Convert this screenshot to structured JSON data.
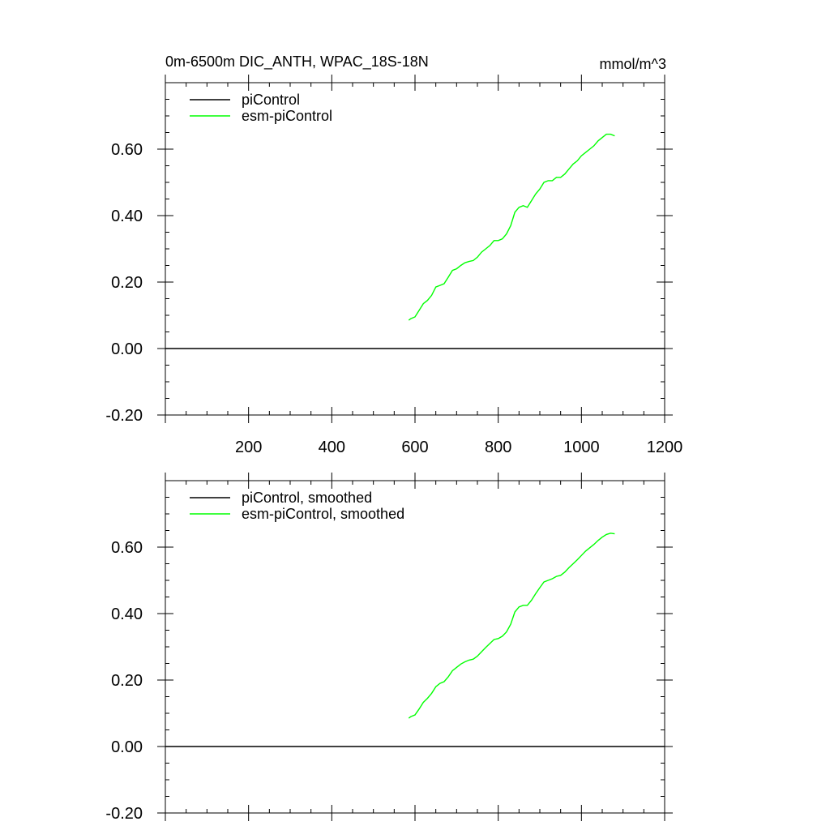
{
  "title": "0m-6500m DIC_ANTH, WPAC_18S-18N",
  "units": "mmol/m^3",
  "chart_data": [
    {
      "type": "line",
      "panel": "top",
      "title": "0m-6500m DIC_ANTH, WPAC_18S-18N",
      "units_label": "mmol/m^3",
      "xlim": [
        0,
        1200
      ],
      "ylim": [
        -0.2,
        0.8
      ],
      "x_ticks": [
        200,
        400,
        600,
        800,
        1000,
        1200
      ],
      "x_tick_labels": [
        "200",
        "400",
        "600",
        "800",
        "1000",
        "1200"
      ],
      "y_ticks": [
        -0.2,
        0,
        0.2,
        0.4,
        0.6
      ],
      "y_tick_labels": [
        "-0.20",
        "0.00",
        "0.20",
        "0.40",
        "0.60"
      ],
      "legend_position": "top-left",
      "series": [
        {
          "name": "piControl",
          "color": "#000000",
          "x": [
            0,
            1200
          ],
          "values": [
            0,
            0
          ]
        },
        {
          "name": "esm-piControl",
          "color": "#00ff00",
          "x": [
            585,
            590,
            600,
            610,
            620,
            630,
            640,
            650,
            660,
            670,
            680,
            690,
            700,
            710,
            720,
            730,
            740,
            750,
            760,
            770,
            780,
            790,
            800,
            810,
            820,
            830,
            840,
            850,
            860,
            870,
            880,
            890,
            900,
            910,
            920,
            930,
            940,
            950,
            960,
            970,
            980,
            990,
            1000,
            1010,
            1020,
            1030,
            1040,
            1050,
            1060,
            1070,
            1080
          ],
          "values": [
            0.085,
            0.09,
            0.095,
            0.115,
            0.135,
            0.145,
            0.16,
            0.185,
            0.19,
            0.195,
            0.215,
            0.235,
            0.24,
            0.25,
            0.258,
            0.262,
            0.265,
            0.275,
            0.29,
            0.3,
            0.31,
            0.325,
            0.325,
            0.33,
            0.345,
            0.37,
            0.41,
            0.425,
            0.43,
            0.425,
            0.445,
            0.465,
            0.48,
            0.5,
            0.505,
            0.505,
            0.515,
            0.515,
            0.525,
            0.54,
            0.555,
            0.565,
            0.58,
            0.59,
            0.6,
            0.61,
            0.625,
            0.635,
            0.645,
            0.645,
            0.64
          ]
        }
      ]
    },
    {
      "type": "line",
      "panel": "bottom",
      "title": "",
      "xlim": [
        0,
        1200
      ],
      "ylim": [
        -0.2,
        0.8
      ],
      "y_ticks": [
        -0.2,
        0,
        0.2,
        0.4,
        0.6
      ],
      "y_tick_labels": [
        "-0.20",
        "0.00",
        "0.20",
        "0.40",
        "0.60"
      ],
      "legend_position": "top-left",
      "series": [
        {
          "name": "piControl, smoothed",
          "color": "#000000",
          "x": [
            0,
            1200
          ],
          "values": [
            0,
            0
          ]
        },
        {
          "name": "esm-piControl, smoothed",
          "color": "#00ff00",
          "x": [
            585,
            590,
            600,
            610,
            620,
            630,
            640,
            650,
            660,
            670,
            680,
            690,
            700,
            710,
            720,
            730,
            740,
            750,
            760,
            770,
            780,
            790,
            800,
            810,
            820,
            830,
            840,
            850,
            860,
            870,
            880,
            890,
            900,
            910,
            920,
            930,
            940,
            950,
            960,
            970,
            980,
            990,
            1000,
            1010,
            1020,
            1030,
            1040,
            1050,
            1060,
            1070,
            1080
          ],
          "values": [
            0.085,
            0.09,
            0.095,
            0.113,
            0.133,
            0.145,
            0.16,
            0.18,
            0.19,
            0.195,
            0.21,
            0.228,
            0.238,
            0.248,
            0.255,
            0.26,
            0.263,
            0.272,
            0.285,
            0.298,
            0.31,
            0.322,
            0.325,
            0.332,
            0.345,
            0.368,
            0.405,
            0.42,
            0.425,
            0.425,
            0.44,
            0.46,
            0.478,
            0.495,
            0.5,
            0.505,
            0.512,
            0.515,
            0.525,
            0.538,
            0.55,
            0.562,
            0.575,
            0.588,
            0.598,
            0.608,
            0.62,
            0.63,
            0.638,
            0.642,
            0.64
          ]
        }
      ]
    }
  ]
}
